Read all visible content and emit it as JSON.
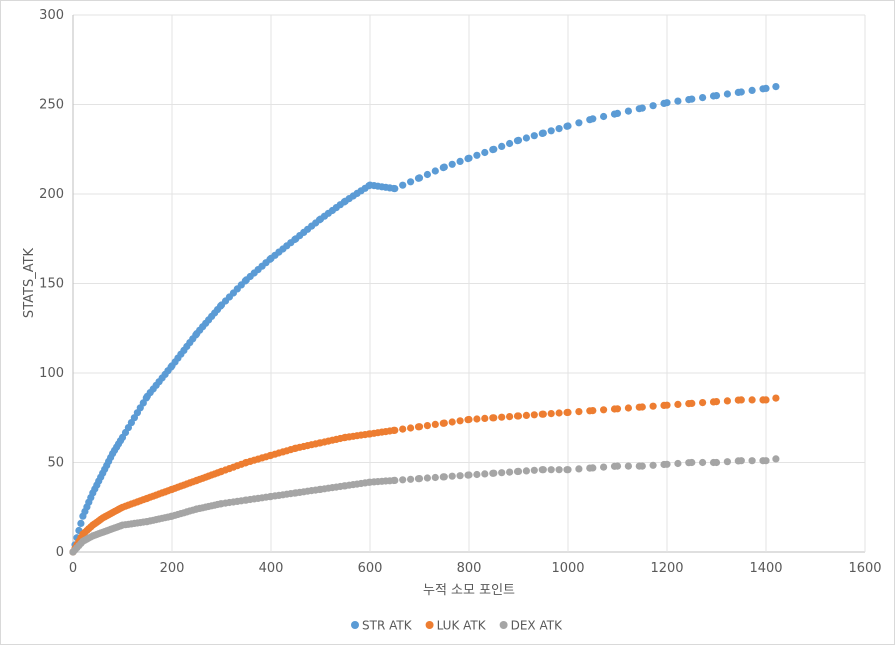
{
  "chart_data": {
    "type": "scatter",
    "title": "",
    "xlabel": "누적 소모 포인트",
    "ylabel": "STATS_ATK",
    "xlim": [
      0,
      1600
    ],
    "ylim": [
      0,
      300
    ],
    "xticks": [
      "0",
      "200",
      "400",
      "600",
      "800",
      "1000",
      "1200",
      "1400",
      "1600"
    ],
    "yticks": [
      "0",
      "50",
      "100",
      "150",
      "200",
      "250",
      "300"
    ],
    "grid": true,
    "legend_position": "bottom",
    "x": [
      0,
      20,
      40,
      60,
      80,
      100,
      150,
      200,
      250,
      300,
      350,
      400,
      450,
      500,
      550,
      600,
      650,
      700,
      750,
      800,
      850,
      900,
      950,
      1000,
      1050,
      1100,
      1150,
      1200,
      1250,
      1300,
      1350,
      1400,
      1420
    ],
    "series": [
      {
        "name": "STR ATK",
        "color": "#5b9bd5",
        "values": [
          0,
          20,
          33,
          44,
          55,
          64,
          87,
          104,
          122,
          138,
          152,
          164,
          175,
          186,
          196,
          205,
          203,
          209,
          215,
          220,
          225,
          230,
          234,
          238,
          242,
          245,
          248,
          251,
          253,
          255,
          257,
          259,
          260
        ]
      },
      {
        "name": "LUK ATK",
        "color": "#ed7d31",
        "values": [
          0,
          10,
          15,
          19,
          22,
          25,
          30,
          35,
          40,
          45,
          50,
          54,
          58,
          61,
          64,
          66,
          68,
          70,
          72,
          74,
          75,
          76,
          77,
          78,
          79,
          80,
          81,
          82,
          83,
          84,
          85,
          85,
          86
        ]
      },
      {
        "name": "DEX ATK",
        "color": "#a5a5a5",
        "values": [
          0,
          6,
          9,
          11,
          13,
          15,
          17,
          20,
          24,
          27,
          29,
          31,
          33,
          35,
          37,
          39,
          40,
          41,
          42,
          43,
          44,
          45,
          46,
          46,
          47,
          48,
          48,
          49,
          50,
          50,
          51,
          51,
          52
        ]
      }
    ]
  }
}
